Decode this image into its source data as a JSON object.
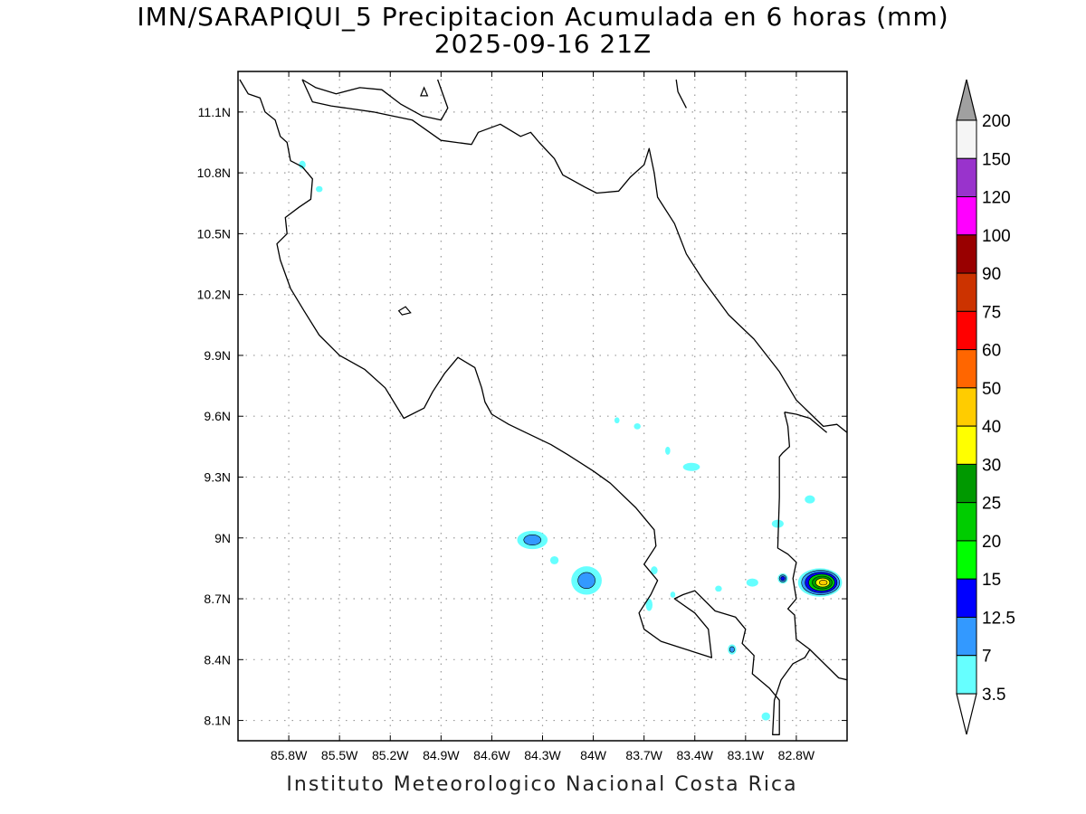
{
  "title": {
    "line1": "IMN/SARAPIQUI_5 Precipitacion Acumulada en 6 horas (mm)",
    "line2": "2025-09-16 21Z"
  },
  "footer": "Instituto Meteorologico Nacional Costa Rica",
  "map": {
    "lon_range": [
      -86.1,
      -82.5
    ],
    "lat_range": [
      8.0,
      11.3
    ],
    "lon_ticks": [
      "85.8W",
      "85.5W",
      "85.2W",
      "84.9W",
      "84.6W",
      "84.3W",
      "84W",
      "83.7W",
      "83.4W",
      "83.1W",
      "82.8W"
    ],
    "lat_ticks": [
      "11.1N",
      "10.8N",
      "10.5N",
      "10.2N",
      "9.9N",
      "9.6N",
      "9.3N",
      "9N",
      "8.7N",
      "8.4N",
      "8.1N"
    ],
    "grid": "dotted"
  },
  "colorbar": {
    "levels": [
      "200",
      "150",
      "120",
      "100",
      "90",
      "75",
      "60",
      "50",
      "40",
      "30",
      "25",
      "20",
      "15",
      "12.5",
      "7",
      "3.5"
    ],
    "colors": [
      "#f5f5f5",
      "#9933cc",
      "#ff00ff",
      "#990000",
      "#cc3300",
      "#ff0000",
      "#ff6600",
      "#ffcc00",
      "#ffff00",
      "#009900",
      "#00cc00",
      "#00ff00",
      "#0000ff",
      "#3399ff",
      "#66ffff"
    ],
    "over_color": "#a0a0a0",
    "under_color": "#ffffff"
  },
  "precip_blobs": [
    {
      "lon": -85.72,
      "lat": 10.84,
      "rx": 0.02,
      "ry": 0.02,
      "levels": [
        "#66ffff"
      ]
    },
    {
      "lon": -85.62,
      "lat": 10.72,
      "rx": 0.02,
      "ry": 0.015,
      "levels": [
        "#66ffff"
      ]
    },
    {
      "lon": -84.36,
      "lat": 8.99,
      "rx": 0.09,
      "ry": 0.045,
      "levels": [
        "#66ffff",
        "#3399ff"
      ]
    },
    {
      "lon": -84.23,
      "lat": 8.89,
      "rx": 0.025,
      "ry": 0.02,
      "levels": [
        "#66ffff"
      ]
    },
    {
      "lon": -84.04,
      "lat": 8.79,
      "rx": 0.09,
      "ry": 0.07,
      "levels": [
        "#66ffff",
        "#3399ff"
      ]
    },
    {
      "lon": -83.86,
      "lat": 9.58,
      "rx": 0.015,
      "ry": 0.015,
      "levels": [
        "#66ffff"
      ]
    },
    {
      "lon": -83.74,
      "lat": 9.55,
      "rx": 0.02,
      "ry": 0.015,
      "levels": [
        "#66ffff"
      ]
    },
    {
      "lon": -83.56,
      "lat": 9.43,
      "rx": 0.015,
      "ry": 0.02,
      "levels": [
        "#66ffff"
      ]
    },
    {
      "lon": -83.42,
      "lat": 9.35,
      "rx": 0.05,
      "ry": 0.02,
      "levels": [
        "#66ffff"
      ]
    },
    {
      "lon": -83.64,
      "lat": 8.84,
      "rx": 0.02,
      "ry": 0.02,
      "levels": [
        "#66ffff"
      ]
    },
    {
      "lon": -83.67,
      "lat": 8.67,
      "rx": 0.02,
      "ry": 0.03,
      "levels": [
        "#66ffff"
      ]
    },
    {
      "lon": -83.53,
      "lat": 8.72,
      "rx": 0.015,
      "ry": 0.015,
      "levels": [
        "#66ffff"
      ]
    },
    {
      "lon": -83.26,
      "lat": 8.75,
      "rx": 0.02,
      "ry": 0.015,
      "levels": [
        "#66ffff"
      ]
    },
    {
      "lon": -83.06,
      "lat": 8.78,
      "rx": 0.035,
      "ry": 0.02,
      "levels": [
        "#66ffff"
      ]
    },
    {
      "lon": -82.88,
      "lat": 8.8,
      "rx": 0.03,
      "ry": 0.025,
      "levels": [
        "#66ffff",
        "#3399ff",
        "#0000ff"
      ]
    },
    {
      "lon": -82.91,
      "lat": 9.07,
      "rx": 0.035,
      "ry": 0.02,
      "levels": [
        "#66ffff"
      ]
    },
    {
      "lon": -82.72,
      "lat": 9.19,
      "rx": 0.03,
      "ry": 0.02,
      "levels": [
        "#66ffff"
      ]
    },
    {
      "lon": -83.18,
      "lat": 8.45,
      "rx": 0.025,
      "ry": 0.025,
      "levels": [
        "#66ffff",
        "#3399ff"
      ]
    },
    {
      "lon": -82.98,
      "lat": 8.12,
      "rx": 0.025,
      "ry": 0.02,
      "levels": [
        "#66ffff"
      ]
    },
    {
      "lon": -82.66,
      "lat": 8.78,
      "rx": 0.13,
      "ry": 0.07,
      "levels": [
        "#66ffff",
        "#3399ff",
        "#0000ff",
        "#00cc00",
        "#009900",
        "#ffff00",
        "#ffcc00"
      ]
    }
  ],
  "coastlines": [
    [
      [
        -86.09,
        11.26
      ],
      [
        -86.04,
        11.19
      ],
      [
        -85.97,
        11.17
      ],
      [
        -85.94,
        11.1
      ],
      [
        -85.88,
        11.06
      ],
      [
        -85.85,
        10.98
      ],
      [
        -85.81,
        10.95
      ],
      [
        -85.79,
        10.86
      ],
      [
        -85.72,
        10.83
      ],
      [
        -85.66,
        10.77
      ],
      [
        -85.67,
        10.67
      ],
      [
        -85.74,
        10.63
      ],
      [
        -85.82,
        10.58
      ],
      [
        -85.81,
        10.5
      ],
      [
        -85.87,
        10.45
      ],
      [
        -85.85,
        10.37
      ],
      [
        -85.79,
        10.23
      ],
      [
        -85.71,
        10.12
      ],
      [
        -85.62,
        10.0
      ],
      [
        -85.5,
        9.9
      ],
      [
        -85.35,
        9.83
      ],
      [
        -85.23,
        9.74
      ],
      [
        -85.12,
        9.59
      ],
      [
        -85.0,
        9.64
      ],
      [
        -84.95,
        9.72
      ],
      [
        -84.88,
        9.81
      ],
      [
        -84.8,
        9.89
      ],
      [
        -84.7,
        9.84
      ],
      [
        -84.66,
        9.74
      ],
      [
        -84.64,
        9.67
      ],
      [
        -84.6,
        9.61
      ],
      [
        -84.5,
        9.56
      ],
      [
        -84.4,
        9.52
      ],
      [
        -84.25,
        9.46
      ],
      [
        -84.15,
        9.41
      ],
      [
        -84.0,
        9.33
      ],
      [
        -83.9,
        9.27
      ],
      [
        -83.75,
        9.15
      ],
      [
        -83.64,
        9.04
      ],
      [
        -83.63,
        8.96
      ],
      [
        -83.7,
        8.87
      ],
      [
        -83.62,
        8.79
      ],
      [
        -83.66,
        8.72
      ],
      [
        -83.73,
        8.63
      ],
      [
        -83.7,
        8.55
      ],
      [
        -83.6,
        8.49
      ],
      [
        -83.45,
        8.45
      ],
      [
        -83.3,
        8.41
      ],
      [
        -83.32,
        8.55
      ],
      [
        -83.4,
        8.63
      ],
      [
        -83.52,
        8.7
      ],
      [
        -83.47,
        8.72
      ],
      [
        -83.4,
        8.74
      ],
      [
        -83.28,
        8.64
      ],
      [
        -83.16,
        8.61
      ],
      [
        -83.1,
        8.55
      ],
      [
        -83.12,
        8.48
      ],
      [
        -83.05,
        8.42
      ],
      [
        -83.06,
        8.33
      ],
      [
        -82.96,
        8.26
      ],
      [
        -82.9,
        8.2
      ],
      [
        -82.9,
        8.03
      ],
      [
        -82.94,
        8.03
      ],
      [
        -82.93,
        8.2
      ],
      [
        -82.89,
        8.3
      ],
      [
        -82.82,
        8.38
      ],
      [
        -82.75,
        8.41
      ],
      [
        -82.72,
        8.45
      ],
      [
        -82.55,
        8.31
      ],
      [
        -82.5,
        8.3
      ]
    ],
    [
      [
        -85.72,
        11.26
      ],
      [
        -85.66,
        11.15
      ],
      [
        -85.55,
        11.13
      ],
      [
        -85.3,
        11.1
      ],
      [
        -85.07,
        11.06
      ],
      [
        -84.9,
        10.96
      ],
      [
        -84.72,
        10.94
      ],
      [
        -84.68,
        11.0
      ],
      [
        -84.55,
        11.04
      ],
      [
        -84.43,
        10.98
      ],
      [
        -84.37,
        11.0
      ],
      [
        -84.32,
        10.95
      ],
      [
        -84.23,
        10.87
      ],
      [
        -84.18,
        10.79
      ],
      [
        -84.05,
        10.73
      ],
      [
        -83.98,
        10.7
      ],
      [
        -83.85,
        10.71
      ],
      [
        -83.78,
        10.78
      ],
      [
        -83.7,
        10.84
      ],
      [
        -83.67,
        10.92
      ],
      [
        -83.64,
        10.8
      ],
      [
        -83.62,
        10.68
      ],
      [
        -83.52,
        10.55
      ],
      [
        -83.45,
        10.4
      ],
      [
        -83.35,
        10.27
      ],
      [
        -83.2,
        10.1
      ],
      [
        -83.05,
        9.98
      ],
      [
        -82.9,
        9.82
      ],
      [
        -82.8,
        9.68
      ],
      [
        -82.64,
        9.55
      ],
      [
        -82.56,
        9.56
      ],
      [
        -82.5,
        9.52
      ]
    ],
    [
      [
        -83.51,
        11.26
      ],
      [
        -83.5,
        11.2
      ],
      [
        -83.45,
        11.12
      ]
    ],
    [
      [
        -85.72,
        11.26
      ],
      [
        -85.64,
        11.22
      ],
      [
        -85.52,
        11.19
      ],
      [
        -85.38,
        11.22
      ],
      [
        -85.25,
        11.21
      ],
      [
        -85.14,
        11.14
      ],
      [
        -85.01,
        11.08
      ],
      [
        -84.9,
        11.06
      ],
      [
        -84.86,
        11.12
      ],
      [
        -84.92,
        11.26
      ]
    ],
    [
      [
        -82.87,
        9.62
      ],
      [
        -82.8,
        9.61
      ],
      [
        -82.72,
        9.59
      ],
      [
        -82.62,
        9.52
      ]
    ],
    [
      [
        -82.87,
        9.62
      ],
      [
        -82.85,
        9.55
      ],
      [
        -82.84,
        9.45
      ],
      [
        -82.88,
        9.42
      ],
      [
        -82.9,
        9.4
      ],
      [
        -82.9,
        9.2
      ],
      [
        -82.91,
        8.95
      ],
      [
        -82.85,
        8.92
      ],
      [
        -82.8,
        8.88
      ],
      [
        -82.82,
        8.8
      ],
      [
        -82.8,
        8.7
      ],
      [
        -82.85,
        8.65
      ],
      [
        -82.81,
        8.62
      ],
      [
        -82.8,
        8.5
      ],
      [
        -82.72,
        8.45
      ]
    ]
  ],
  "lakes": [
    [
      [
        -85.0,
        11.22
      ],
      [
        -85.02,
        11.18
      ],
      [
        -84.98,
        11.18
      ],
      [
        -85.0,
        11.22
      ]
    ],
    [
      [
        -85.15,
        10.12
      ],
      [
        -85.11,
        10.14
      ],
      [
        -85.08,
        10.11
      ],
      [
        -85.13,
        10.1
      ],
      [
        -85.15,
        10.12
      ]
    ]
  ]
}
